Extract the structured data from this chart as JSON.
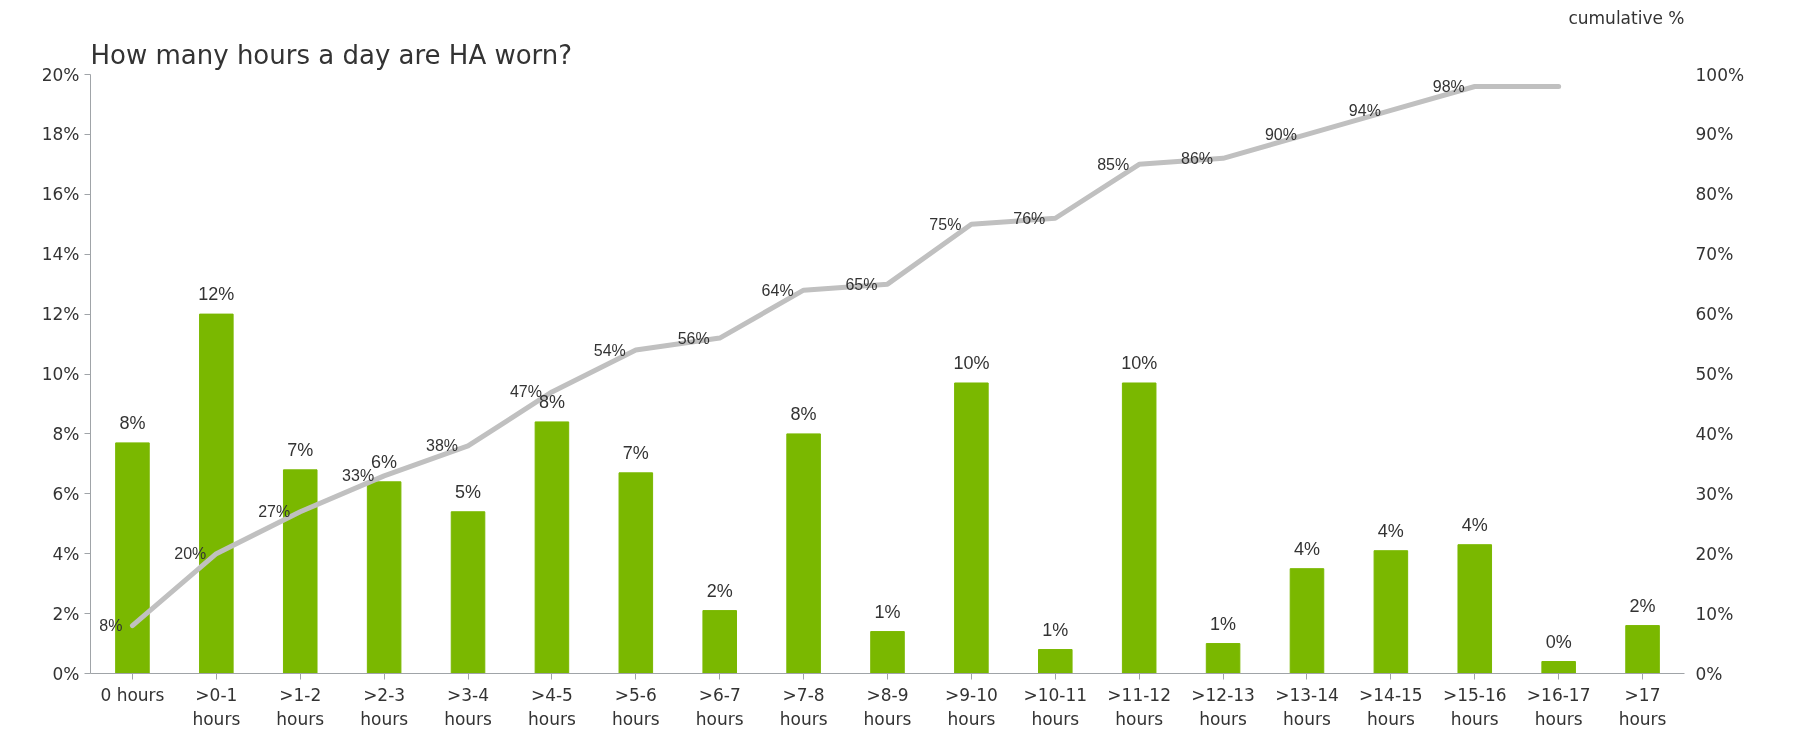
{
  "chart_data": {
    "type": "bar",
    "title": "How many hours a day are HA worn?",
    "y2label": "cumulative %",
    "categories": [
      "0 hours",
      ">0-1\nhours",
      ">1-2\nhours",
      ">2-3\nhours",
      ">3-4\nhours",
      ">4-5\nhours",
      ">5-6\nhours",
      ">6-7\nhours",
      ">7-8\nhours",
      ">8-9\nhours",
      ">9-10\nhours",
      ">10-11\nhours",
      ">11-12\nhours",
      ">12-13\nhours",
      ">13-14\nhours",
      ">14-15\nhours",
      ">15-16\nhours",
      ">16-17\nhours",
      ">17\nhours"
    ],
    "series": [
      {
        "color": "#7ab800",
        "values": [
          7.7,
          12.0,
          6.8,
          6.4,
          5.4,
          8.4,
          6.7,
          2.1,
          8.0,
          1.4,
          9.7,
          0.8,
          9.7,
          1.0,
          3.5,
          4.1,
          4.3,
          0.4,
          1.6
        ],
        "value_labels": [
          "8%",
          "12%",
          "7%",
          "6%",
          "5%",
          "8%",
          "7%",
          "2%",
          "8%",
          "1%",
          "10%",
          "1%",
          "10%",
          "1%",
          "4%",
          "4%",
          "4%",
          "0%",
          "2%"
        ]
      },
      {
        "type": "line",
        "axis": "y2",
        "color": "#c0c0c0",
        "values": [
          8,
          20,
          27,
          33,
          38,
          47,
          54,
          56,
          64,
          65,
          75,
          76,
          85,
          86,
          90,
          94,
          98,
          98,
          null
        ],
        "value_labels": [
          "8%",
          "20%",
          "27%",
          "33%",
          "38%",
          "47%",
          "54%",
          "56%",
          "64%",
          "65%",
          "75%",
          "76%",
          "85%",
          "86%",
          "90%",
          "94%",
          "98%",
          null,
          null
        ]
      }
    ],
    "ylim": [
      0,
      20
    ],
    "yticks": [
      {
        "value": 0,
        "label": "0%"
      },
      {
        "value": 2,
        "label": "2%"
      },
      {
        "value": 4,
        "label": "4%"
      },
      {
        "value": 6,
        "label": "6%"
      },
      {
        "value": 8,
        "label": "8%"
      },
      {
        "value": 10,
        "label": "10%"
      },
      {
        "value": 12,
        "label": "12%"
      },
      {
        "value": 14,
        "label": "14%"
      },
      {
        "value": 16,
        "label": "16%"
      },
      {
        "value": 18,
        "label": "18%"
      },
      {
        "value": 20,
        "label": "20%"
      }
    ],
    "y2lim": [
      0,
      100
    ],
    "y2ticks": [
      {
        "value": 0,
        "label": "0%"
      },
      {
        "value": 10,
        "label": "10%"
      },
      {
        "value": 20,
        "label": "20%"
      },
      {
        "value": 30,
        "label": "30%"
      },
      {
        "value": 40,
        "label": "40%"
      },
      {
        "value": 50,
        "label": "50%"
      },
      {
        "value": 60,
        "label": "60%"
      },
      {
        "value": 70,
        "label": "70%"
      },
      {
        "value": 80,
        "label": "80%"
      },
      {
        "value": 90,
        "label": "90%"
      },
      {
        "value": 100,
        "label": "100%"
      }
    ],
    "grid": false
  }
}
